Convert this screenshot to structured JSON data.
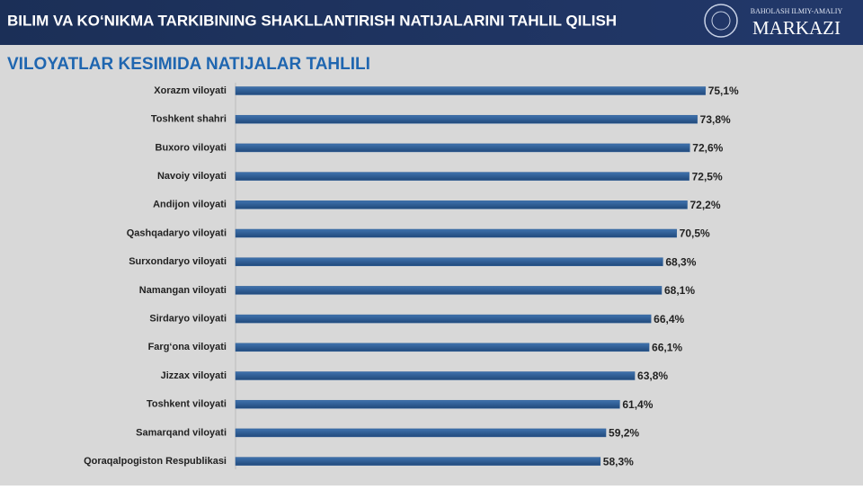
{
  "header": {
    "title": "BILIM VA KO‘NIKMA TARKIBINING SHAKLLANTIRISH NATIJALARINI TAHLIL QILISH",
    "logo_line1": "BAHOLASH ILMIY-AMALIY",
    "logo_line2": "MARKAZI"
  },
  "chart_data": {
    "type": "barh",
    "title": "VILOYATLAR KESIMIDA NATIJALAR TAHLILI",
    "categories": [
      "Xorazm viloyati",
      "Toshkent shahri",
      "Buxoro viloyati",
      "Navoiy viloyati",
      "Andijon viloyati",
      "Qashqadaryo viloyati",
      "Surxondaryo viloyati",
      "Namangan viloyati",
      "Sirdaryo viloyati",
      "Farg‘ona viloyati",
      "Jizzax viloyati",
      "Toshkent viloyati",
      "Samarqand viloyati",
      "Qoraqalpogiston Respublikasi"
    ],
    "values": [
      75.1,
      73.8,
      72.6,
      72.5,
      72.2,
      70.5,
      68.3,
      68.1,
      66.4,
      66.1,
      63.8,
      61.4,
      59.2,
      58.3
    ],
    "value_labels": [
      "75,1%",
      "73,8%",
      "72,6%",
      "72,5%",
      "72,2%",
      "70,5%",
      "68,3%",
      "68,1%",
      "66,4%",
      "66,1%",
      "63,8%",
      "61,4%",
      "59,2%",
      "58,3%"
    ],
    "color": "#2f5f98",
    "xlim": [
      0,
      100
    ]
  }
}
